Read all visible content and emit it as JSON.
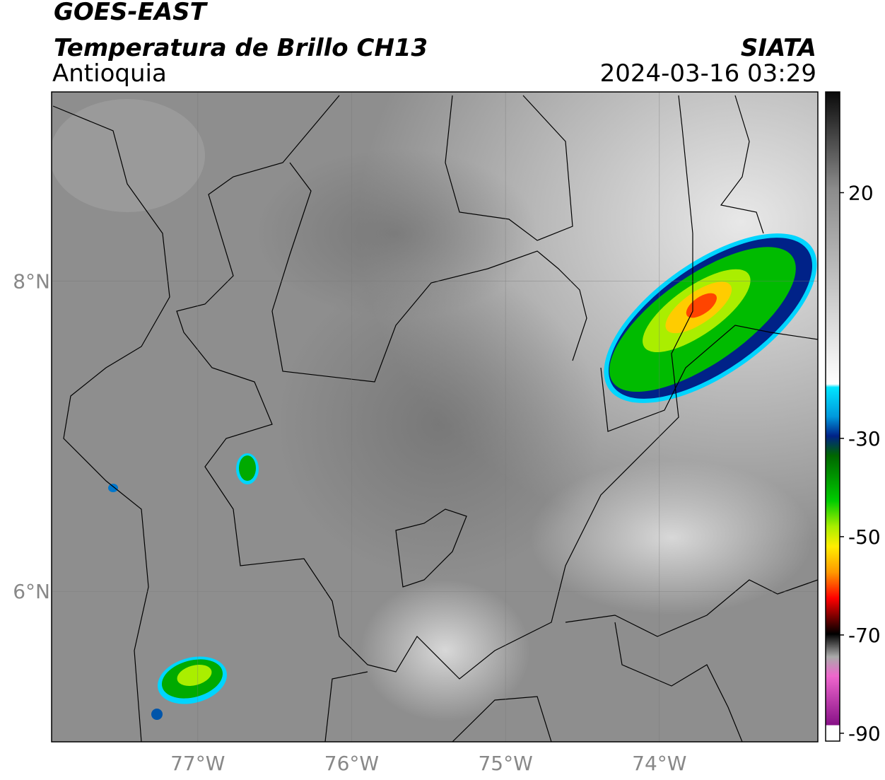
{
  "header": {
    "satellite": "GOES-EAST",
    "product": "Temperatura de Brillo CH13",
    "region": "Antioquia",
    "source": "SIATA",
    "datetime": "2024-03-16 03:29"
  },
  "map": {
    "lon_range": [
      -77.95,
      -72.97
    ],
    "lat_range": [
      5.03,
      9.22
    ],
    "xticks": [
      {
        "value": -77,
        "label": "77°W"
      },
      {
        "value": -76,
        "label": "76°W"
      },
      {
        "value": -75,
        "label": "75°W"
      },
      {
        "value": -74,
        "label": "74°W"
      }
    ],
    "yticks": [
      {
        "value": 8,
        "label": "8°N"
      },
      {
        "value": 6,
        "label": "6°N"
      }
    ]
  },
  "colorbar": {
    "range": [
      -91.6,
      40.5
    ],
    "ticks": [
      20,
      -30,
      -50,
      -70,
      -90
    ]
  }
}
